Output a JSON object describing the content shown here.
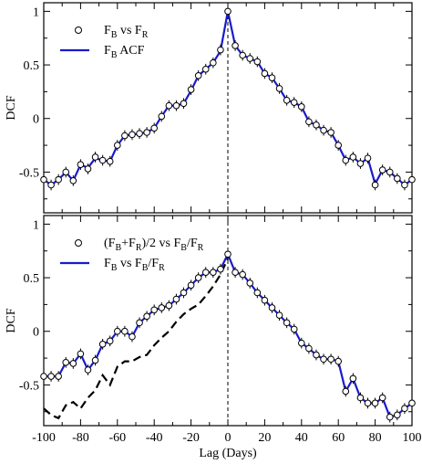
{
  "chart_data": [
    {
      "type": "scatter",
      "panel": "top",
      "ylabel": "DCF",
      "xlabel": "",
      "xlim": [
        -100,
        100
      ],
      "ylim": [
        -0.88,
        1.08
      ],
      "xticks": [
        -100,
        -80,
        -60,
        -40,
        -20,
        0,
        20,
        40,
        60,
        80,
        100
      ],
      "xtick_labels_visible": false,
      "yticks": [
        -0.5,
        0,
        0.5,
        1
      ],
      "ytick_labels": [
        "-0.5",
        "0",
        "0.5",
        "1"
      ],
      "vline_x": 0,
      "legend": {
        "placement": "top-left",
        "entries": [
          {
            "marker": "open-circle",
            "parts": [
              [
                "F",
                ""
              ],
              [
                "B",
                "sub"
              ],
              [
                " vs F",
                ""
              ],
              [
                "R",
                "sub"
              ]
            ]
          },
          {
            "marker": "blue-line",
            "parts": [
              [
                "F",
                ""
              ],
              [
                "B",
                "sub"
              ],
              [
                " ACF",
                ""
              ]
            ]
          }
        ]
      },
      "series": [
        {
          "name": "FB vs FR",
          "style": "markers-with-errorbars",
          "x": [
            -100,
            -96,
            -92,
            -88,
            -84,
            -80,
            -76,
            -72,
            -68,
            -64,
            -60,
            -56,
            -52,
            -48,
            -44,
            -40,
            -36,
            -32,
            -28,
            -24,
            -20,
            -16,
            -12,
            -8,
            -4,
            0,
            4,
            8,
            12,
            16,
            20,
            24,
            28,
            32,
            36,
            40,
            44,
            48,
            52,
            56,
            60,
            64,
            68,
            72,
            76,
            80,
            84,
            88,
            92,
            96,
            100
          ],
          "y": [
            -0.57,
            -0.62,
            -0.57,
            -0.5,
            -0.58,
            -0.43,
            -0.47,
            -0.36,
            -0.39,
            -0.4,
            -0.25,
            -0.16,
            -0.15,
            -0.14,
            -0.13,
            -0.09,
            0.02,
            0.12,
            0.12,
            0.14,
            0.27,
            0.4,
            0.46,
            0.52,
            0.64,
            1.0,
            0.68,
            0.59,
            0.56,
            0.53,
            0.42,
            0.38,
            0.28,
            0.17,
            0.15,
            0.11,
            -0.03,
            -0.06,
            -0.11,
            -0.13,
            -0.25,
            -0.39,
            -0.36,
            -0.42,
            -0.37,
            -0.62,
            -0.48,
            -0.5,
            -0.56,
            -0.62,
            -0.57
          ],
          "err": [
            0.05,
            0.05,
            0.05,
            0.05,
            0.05,
            0.05,
            0.05,
            0.05,
            0.05,
            0.05,
            0.05,
            0.05,
            0.05,
            0.05,
            0.05,
            0.05,
            0.05,
            0.05,
            0.05,
            0.05,
            0.05,
            0.05,
            0.05,
            0.05,
            0.05,
            0.03,
            0.05,
            0.05,
            0.05,
            0.05,
            0.05,
            0.05,
            0.05,
            0.05,
            0.05,
            0.05,
            0.05,
            0.05,
            0.05,
            0.05,
            0.05,
            0.05,
            0.05,
            0.05,
            0.05,
            0.05,
            0.05,
            0.05,
            0.05,
            0.05,
            0.05
          ]
        },
        {
          "name": "FB ACF",
          "style": "line",
          "color": "#1a1acc",
          "x": [
            -100,
            -96,
            -92,
            -88,
            -84,
            -80,
            -76,
            -72,
            -68,
            -64,
            -60,
            -56,
            -52,
            -48,
            -44,
            -40,
            -36,
            -32,
            -28,
            -24,
            -20,
            -16,
            -12,
            -8,
            -4,
            0,
            4,
            8,
            12,
            16,
            20,
            24,
            28,
            32,
            36,
            40,
            44,
            48,
            52,
            56,
            60,
            64,
            68,
            72,
            76,
            80,
            84,
            88,
            92,
            96,
            100
          ],
          "y": [
            -0.57,
            -0.62,
            -0.57,
            -0.5,
            -0.58,
            -0.43,
            -0.46,
            -0.37,
            -0.39,
            -0.4,
            -0.25,
            -0.16,
            -0.15,
            -0.14,
            -0.13,
            -0.09,
            0.02,
            0.12,
            0.12,
            0.14,
            0.26,
            0.4,
            0.46,
            0.52,
            0.63,
            1.0,
            0.68,
            0.59,
            0.56,
            0.53,
            0.42,
            0.38,
            0.28,
            0.17,
            0.15,
            0.11,
            -0.03,
            -0.06,
            -0.11,
            -0.13,
            -0.25,
            -0.39,
            -0.36,
            -0.42,
            -0.37,
            -0.61,
            -0.48,
            -0.5,
            -0.56,
            -0.62,
            -0.57
          ]
        }
      ]
    },
    {
      "type": "scatter",
      "panel": "bottom",
      "ylabel": "DCF",
      "xlabel": "Lag (Days)",
      "xlim": [
        -100,
        100
      ],
      "ylim": [
        -0.88,
        1.08
      ],
      "xticks": [
        -100,
        -80,
        -60,
        -40,
        -20,
        0,
        20,
        40,
        60,
        80,
        100
      ],
      "xtick_labels": [
        "-100",
        "-80",
        "-60",
        "-40",
        "-20",
        "0",
        "20",
        "40",
        "60",
        "80",
        "100"
      ],
      "yticks": [
        -0.5,
        0,
        0.5,
        1
      ],
      "ytick_labels": [
        "-0.5",
        "0",
        "0.5",
        "1"
      ],
      "vline_x": 0,
      "legend": {
        "placement": "top-left",
        "entries": [
          {
            "marker": "open-circle",
            "parts": [
              [
                "(F",
                ""
              ],
              [
                "B",
                "sub"
              ],
              [
                "+F",
                ""
              ],
              [
                "R",
                "sub"
              ],
              [
                ")/2 vs F",
                ""
              ],
              [
                "B",
                "sub"
              ],
              [
                "/F",
                ""
              ],
              [
                "R",
                "sub"
              ]
            ]
          },
          {
            "marker": "blue-line",
            "parts": [
              [
                "F",
                ""
              ],
              [
                "B",
                "sub"
              ],
              [
                " vs F",
                ""
              ],
              [
                "B",
                "sub"
              ],
              [
                "/F",
                ""
              ],
              [
                "R",
                "sub"
              ]
            ]
          }
        ]
      },
      "series": [
        {
          "name": "(FB+FR)/2 vs FB/FR",
          "style": "markers-with-errorbars",
          "x": [
            -100,
            -96,
            -92,
            -88,
            -84,
            -80,
            -76,
            -72,
            -68,
            -64,
            -60,
            -56,
            -52,
            -48,
            -44,
            -40,
            -36,
            -32,
            -28,
            -24,
            -20,
            -16,
            -12,
            -8,
            -4,
            0,
            4,
            8,
            12,
            16,
            20,
            24,
            28,
            32,
            36,
            40,
            44,
            48,
            52,
            56,
            60,
            64,
            68,
            72,
            76,
            80,
            84,
            88,
            92,
            96,
            100
          ],
          "y": [
            -0.42,
            -0.42,
            -0.42,
            -0.29,
            -0.3,
            -0.21,
            -0.36,
            -0.27,
            -0.12,
            -0.09,
            0.0,
            0.0,
            -0.05,
            0.08,
            0.14,
            0.2,
            0.22,
            0.24,
            0.3,
            0.36,
            0.43,
            0.5,
            0.55,
            0.55,
            0.58,
            0.72,
            0.55,
            0.53,
            0.45,
            0.36,
            0.29,
            0.22,
            0.15,
            0.08,
            0.02,
            -0.11,
            -0.16,
            -0.22,
            -0.26,
            -0.26,
            -0.28,
            -0.56,
            -0.44,
            -0.62,
            -0.67,
            -0.67,
            -0.62,
            -0.8,
            -0.78,
            -0.72,
            -0.67
          ],
          "err": [
            0.05,
            0.05,
            0.05,
            0.05,
            0.05,
            0.05,
            0.05,
            0.05,
            0.05,
            0.05,
            0.05,
            0.05,
            0.05,
            0.05,
            0.05,
            0.05,
            0.05,
            0.05,
            0.05,
            0.05,
            0.05,
            0.05,
            0.05,
            0.05,
            0.05,
            0.04,
            0.05,
            0.05,
            0.05,
            0.05,
            0.05,
            0.05,
            0.05,
            0.05,
            0.05,
            0.05,
            0.05,
            0.05,
            0.05,
            0.05,
            0.05,
            0.05,
            0.05,
            0.05,
            0.05,
            0.05,
            0.05,
            0.05,
            0.05,
            0.05,
            0.05
          ]
        },
        {
          "name": "FB vs FB/FR",
          "style": "line",
          "color": "#1a1acc",
          "x": [
            -100,
            -96,
            -92,
            -88,
            -84,
            -80,
            -76,
            -72,
            -68,
            -64,
            -60,
            -56,
            -52,
            -48,
            -44,
            -40,
            -36,
            -32,
            -28,
            -24,
            -20,
            -16,
            -12,
            -8,
            -4,
            0,
            4,
            8,
            12,
            16,
            20,
            24,
            28,
            32,
            36,
            40,
            44,
            48,
            52,
            56,
            60,
            64,
            68,
            72,
            76,
            80,
            84,
            88,
            92,
            96,
            100
          ],
          "y": [
            -0.42,
            -0.42,
            -0.42,
            -0.29,
            -0.3,
            -0.21,
            -0.36,
            -0.27,
            -0.12,
            -0.09,
            0.0,
            0.0,
            -0.05,
            0.08,
            0.14,
            0.2,
            0.22,
            0.24,
            0.3,
            0.36,
            0.43,
            0.5,
            0.55,
            0.55,
            0.58,
            0.72,
            0.55,
            0.53,
            0.45,
            0.36,
            0.29,
            0.22,
            0.15,
            0.08,
            0.02,
            -0.11,
            -0.16,
            -0.22,
            -0.26,
            -0.26,
            -0.28,
            -0.56,
            -0.44,
            -0.62,
            -0.67,
            -0.67,
            -0.62,
            -0.8,
            -0.78,
            -0.72,
            -0.67
          ]
        },
        {
          "name": "dashed",
          "style": "dashed-line",
          "color": "#000000",
          "x": [
            -100,
            -96,
            -92,
            -88,
            -84,
            -80,
            -76,
            -72,
            -68,
            -64,
            -60,
            -56,
            -52,
            -48,
            -44,
            -40,
            -36,
            -32,
            -28,
            -24,
            -20,
            -16,
            -12,
            -8,
            -4,
            0
          ],
          "y": [
            -0.72,
            -0.78,
            -0.81,
            -0.69,
            -0.66,
            -0.72,
            -0.62,
            -0.55,
            -0.41,
            -0.5,
            -0.33,
            -0.28,
            -0.28,
            -0.24,
            -0.22,
            -0.13,
            -0.06,
            0.0,
            0.09,
            0.16,
            0.21,
            0.25,
            0.33,
            0.42,
            0.53,
            0.68
          ]
        }
      ]
    }
  ]
}
